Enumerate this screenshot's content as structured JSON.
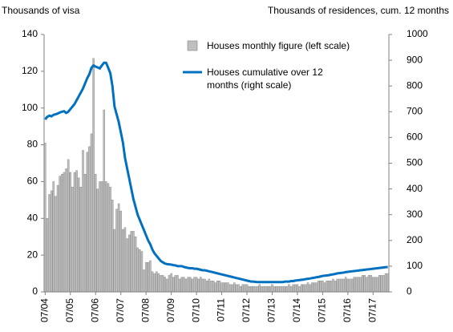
{
  "chart_data": {
    "type": "bar_line",
    "left_axis_label": "Thousands of visa",
    "right_axis_label": "Thousands of residences, cum. 12 months",
    "categories": [
      "07/04",
      null,
      null,
      null,
      null,
      null,
      null,
      null,
      null,
      null,
      null,
      null,
      "07/05",
      null,
      null,
      null,
      null,
      null,
      null,
      null,
      null,
      null,
      null,
      null,
      "07/06",
      null,
      null,
      null,
      null,
      null,
      null,
      null,
      null,
      null,
      null,
      null,
      "07/07",
      null,
      null,
      null,
      null,
      null,
      null,
      null,
      null,
      null,
      null,
      null,
      "07/08",
      null,
      null,
      null,
      null,
      null,
      null,
      null,
      null,
      null,
      null,
      null,
      "07/09",
      null,
      null,
      null,
      null,
      null,
      null,
      null,
      null,
      null,
      null,
      null,
      "07/10",
      null,
      null,
      null,
      null,
      null,
      null,
      null,
      null,
      null,
      null,
      null,
      "07/11",
      null,
      null,
      null,
      null,
      null,
      null,
      null,
      null,
      null,
      null,
      null,
      "07/12",
      null,
      null,
      null,
      null,
      null,
      null,
      null,
      null,
      null,
      null,
      null,
      "07/13",
      null,
      null,
      null,
      null,
      null,
      null,
      null,
      null,
      null,
      null,
      null,
      "07/14",
      null,
      null,
      null,
      null,
      null,
      null,
      null,
      null,
      null,
      null,
      null,
      "07/15",
      null,
      null,
      null,
      null,
      null,
      null,
      null,
      null,
      null,
      null,
      null,
      "07/16",
      null,
      null,
      null,
      null,
      null,
      null,
      null,
      null,
      null,
      null,
      null,
      "07/17",
      null,
      null,
      null,
      null,
      null,
      null,
      null
    ],
    "series": [
      {
        "name": "Houses monthly figure (left scale)",
        "type": "bar",
        "axis": "y",
        "color": "#bfbfbf",
        "values": [
          81,
          40,
          53,
          55,
          60,
          52,
          58,
          63,
          64,
          65,
          67,
          72,
          65,
          57,
          65,
          66,
          62,
          57,
          77,
          64,
          76,
          79,
          86,
          127,
          64,
          56,
          60,
          60,
          99,
          60,
          59,
          57,
          50,
          34,
          45,
          48,
          44,
          34,
          35,
          29,
          31,
          33,
          33,
          30,
          24,
          23,
          22,
          12,
          16,
          16,
          17,
          11,
          10,
          11,
          10,
          9,
          9,
          8,
          7,
          9,
          10,
          8,
          9,
          9,
          7,
          8,
          8,
          7,
          8,
          8,
          7,
          8,
          8,
          7,
          8,
          7,
          7,
          6,
          7,
          6,
          6,
          5,
          6,
          6,
          5,
          5,
          5,
          5,
          4,
          4,
          5,
          4,
          4,
          3,
          4,
          4,
          4,
          3,
          3,
          3,
          3,
          3,
          4,
          3,
          3,
          3,
          3,
          3,
          4,
          3,
          3,
          3,
          3,
          3,
          3,
          3,
          4,
          3,
          4,
          4,
          4,
          3,
          4,
          4,
          4,
          5,
          4,
          5,
          5,
          5,
          6,
          6,
          6,
          5,
          6,
          6,
          6,
          7,
          6,
          7,
          7,
          7,
          7,
          8,
          7,
          7,
          7,
          8,
          8,
          8,
          8,
          9,
          9,
          8,
          9,
          9,
          8,
          8,
          8,
          9,
          9,
          9,
          10,
          10
        ]
      },
      {
        "name": "Houses cumulative over 12 months (right scale)",
        "type": "line",
        "axis": "y2",
        "color": "#0070c0",
        "values": [
          670,
          680,
          685,
          682,
          688,
          690,
          693,
          697,
          700,
          702,
          695,
          700,
          710,
          720,
          730,
          745,
          760,
          775,
          790,
          810,
          830,
          845,
          870,
          880,
          875,
          872,
          868,
          880,
          890,
          890,
          870,
          850,
          800,
          720,
          690,
          660,
          620,
          580,
          520,
          480,
          440,
          400,
          360,
          330,
          300,
          280,
          260,
          240,
          220,
          200,
          185,
          165,
          150,
          140,
          130,
          120,
          115,
          110,
          108,
          107,
          106,
          104,
          103,
          100,
          100,
          100,
          97,
          95,
          93,
          92,
          92,
          90,
          90,
          88,
          86,
          84,
          84,
          82,
          80,
          78,
          76,
          74,
          72,
          70,
          68,
          66,
          64,
          62,
          60,
          58,
          56,
          54,
          52,
          50,
          48,
          46,
          44,
          42,
          40,
          40,
          39,
          38,
          38,
          38,
          38,
          38,
          38,
          38,
          38,
          38,
          38,
          38,
          38,
          38,
          40,
          40,
          40,
          42,
          42,
          44,
          45,
          46,
          47,
          48,
          50,
          51,
          52,
          54,
          55,
          57,
          58,
          60,
          62,
          63,
          64,
          65,
          67,
          68,
          70,
          72,
          73,
          74,
          75,
          77,
          78,
          79,
          80,
          81,
          82,
          83,
          84,
          85,
          86,
          87,
          88,
          89,
          90,
          91,
          92,
          93,
          94,
          95,
          96,
          97
        ]
      }
    ],
    "ylim": [
      0,
      140
    ],
    "yticks": [
      0,
      20,
      40,
      60,
      80,
      100,
      120,
      140
    ],
    "y2lim": [
      0,
      1000
    ],
    "y2ticks": [
      0,
      100,
      200,
      300,
      400,
      500,
      600,
      700,
      800,
      900,
      1000
    ]
  }
}
